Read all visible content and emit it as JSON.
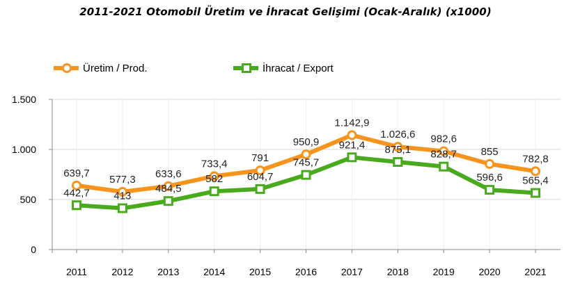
{
  "title": "2011-2021 Otomobil Üretim ve İhracat Gelişimi (Ocak-Aralık) (x1000)",
  "colors": {
    "production": "#f7941d",
    "export": "#4aaa1e",
    "axis": "#888888",
    "grid": "#d9d9d9"
  },
  "legend": {
    "production_label": "Üretim / Prod.",
    "export_label": "İhracat / Export",
    "position": "top-left"
  },
  "chart_data": {
    "type": "line",
    "title": "2011-2021 Otomobil Üretim ve İhracat Gelişimi (Ocak-Aralık) (x1000)",
    "x": [
      "2011",
      "2012",
      "2013",
      "2014",
      "2015",
      "2016",
      "2017",
      "2018",
      "2019",
      "2020",
      "2021"
    ],
    "ylim": [
      0,
      1500
    ],
    "yticks": [
      0,
      500,
      1000,
      1500
    ],
    "ytick_labels": [
      "0",
      "500",
      "1.000",
      "1.500"
    ],
    "grid": true,
    "series": [
      {
        "name": "Üretim / Prod.",
        "values": [
          639.7,
          577.3,
          633.6,
          733.4,
          791,
          950.9,
          1142.9,
          1026.6,
          982.6,
          855,
          782.8
        ],
        "labels": [
          "639,7",
          "577,3",
          "633,6",
          "733,4",
          "791",
          "950,9",
          "1.142,9",
          "1.026,6",
          "982,6",
          "855",
          "782,8"
        ],
        "marker": "circle"
      },
      {
        "name": "İhracat / Export",
        "values": [
          442.7,
          413,
          484.5,
          582,
          604.7,
          745.7,
          921.4,
          875.1,
          828.7,
          596.6,
          565.4
        ],
        "labels": [
          "442,7",
          "413",
          "484,5",
          "582",
          "604,7",
          "745,7",
          "921,4",
          "875,1",
          "828,7",
          "596,6",
          "565,4"
        ],
        "marker": "square"
      }
    ]
  }
}
